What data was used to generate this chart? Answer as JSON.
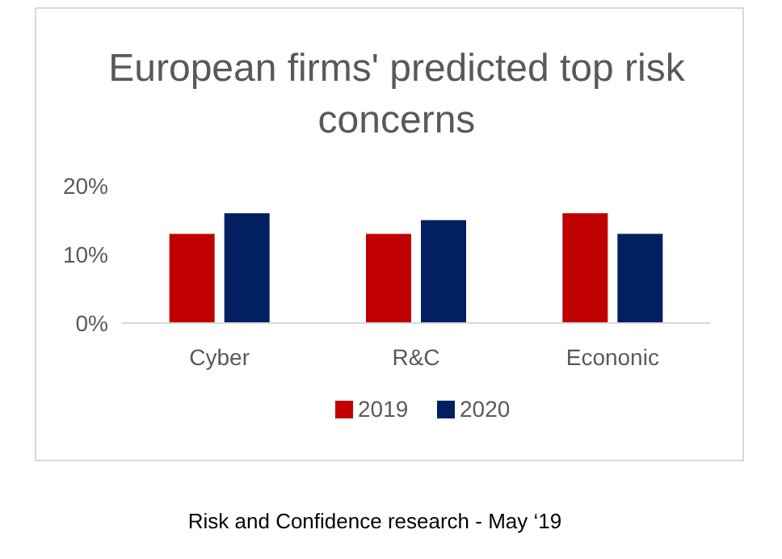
{
  "chart_data": {
    "type": "bar",
    "title": "European firms' predicted top risk concerns",
    "categories": [
      "Cyber",
      "R&C",
      "Econonic"
    ],
    "series": [
      {
        "name": "2019",
        "color": "#c00000",
        "values": [
          13,
          13,
          16
        ]
      },
      {
        "name": "2020",
        "color": "#002060",
        "values": [
          16,
          15,
          13
        ]
      }
    ],
    "ylim": [
      0,
      20
    ],
    "yticks": [
      {
        "value": 0,
        "label": "0%"
      },
      {
        "value": 10,
        "label": "10%"
      },
      {
        "value": 20,
        "label": "20%"
      }
    ],
    "grid": false,
    "legend": "bottom",
    "annotations": [
      "Risk and Confidence research - May ‘19"
    ]
  }
}
